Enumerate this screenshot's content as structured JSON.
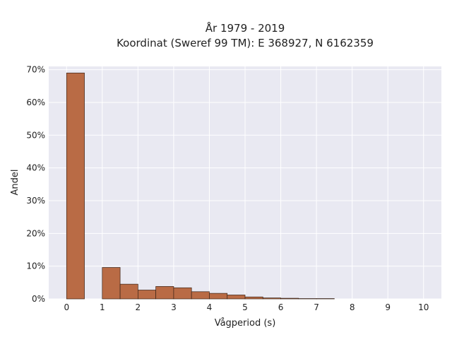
{
  "chart_data": {
    "type": "bar",
    "title_lines": [
      "År 1979 - 2019",
      "Koordinat (Sweref 99 TM): E 368927, N 6162359"
    ],
    "xlabel": "Vågperiod (s)",
    "ylabel": "Andel",
    "x_ticks": [
      "0",
      "1",
      "2",
      "3",
      "4",
      "5",
      "6",
      "7",
      "8",
      "9",
      "10"
    ],
    "y_ticks": [
      "0%",
      "10%",
      "20%",
      "30%",
      "40%",
      "50%",
      "60%",
      "70%"
    ],
    "xlim": [
      -0.5,
      10.5
    ],
    "ylim": [
      0,
      71
    ],
    "bin_width": 0.5,
    "bins": [
      {
        "x0": 0.0,
        "value": 69.0
      },
      {
        "x0": 1.0,
        "value": 9.6
      },
      {
        "x0": 1.5,
        "value": 4.5
      },
      {
        "x0": 2.0,
        "value": 2.7
      },
      {
        "x0": 2.5,
        "value": 3.8
      },
      {
        "x0": 3.0,
        "value": 3.4
      },
      {
        "x0": 3.5,
        "value": 2.2
      },
      {
        "x0": 4.0,
        "value": 1.7
      },
      {
        "x0": 4.5,
        "value": 1.2
      },
      {
        "x0": 5.0,
        "value": 0.6
      },
      {
        "x0": 5.5,
        "value": 0.3
      },
      {
        "x0": 6.0,
        "value": 0.2
      },
      {
        "x0": 6.5,
        "value": 0.1
      },
      {
        "x0": 7.0,
        "value": 0.1
      }
    ],
    "grid": true,
    "colors": {
      "bar_fill": "#b96b45",
      "bar_edge": "#3a2418",
      "plot_bg": "#e9e9f2",
      "grid": "#ffffff"
    }
  }
}
